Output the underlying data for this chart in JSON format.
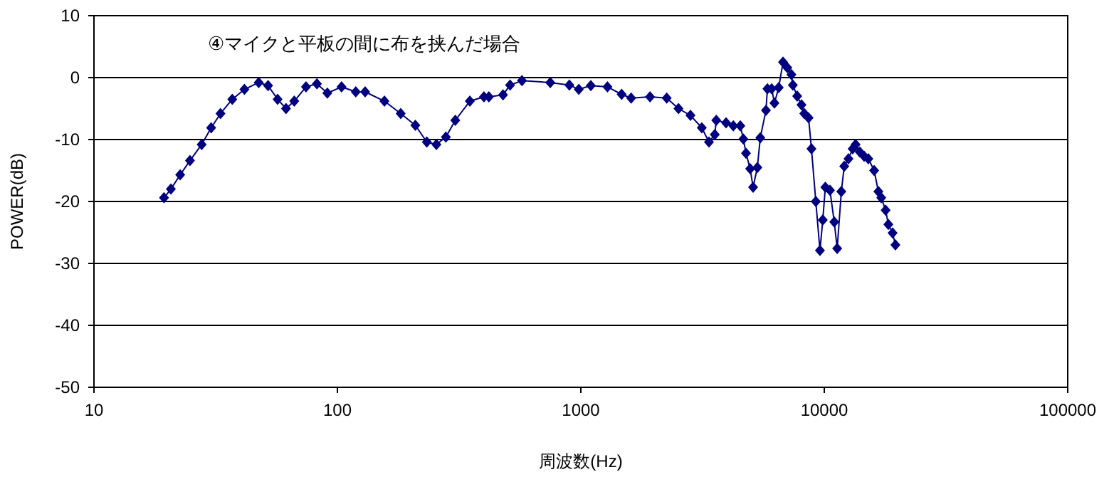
{
  "chart_data": {
    "type": "line",
    "title": "④マイクと平板の間に布を挟んだ場合",
    "xlabel": "周波数(Hz)",
    "ylabel": "POWER(dB)",
    "log": "x",
    "xlim": [
      10,
      100000
    ],
    "xticks": [
      10,
      100,
      1000,
      10000,
      100000
    ],
    "ylim": [
      -50,
      10
    ],
    "yticks": [
      -50,
      -40,
      -30,
      -20,
      -10,
      0,
      10
    ],
    "grid": "y",
    "marker": "diamond",
    "line_style": "solid",
    "series": [
      {
        "color": "#000080",
        "x": [
          19.4,
          20.7,
          22.6,
          24.8,
          27.7,
          30.3,
          33.1,
          37.0,
          41.5,
          47.5,
          51.9,
          56.8,
          61.5,
          66.5,
          74.3,
          82.4,
          90.9,
          104,
          119,
          130,
          156,
          182,
          209,
          233,
          255,
          279,
          305,
          350,
          400,
          419,
          479,
          512,
          573,
          749,
          897,
          981,
          1099,
          1286,
          1471,
          1609,
          1924,
          2253,
          2518,
          2820,
          3140,
          3360,
          3550,
          3600,
          3950,
          4230,
          4520,
          4650,
          4770,
          4960,
          5100,
          5310,
          5460,
          5760,
          5840,
          6080,
          6240,
          6500,
          6770,
          7050,
          7330,
          7430,
          7740,
          8060,
          8280,
          8620,
          8860,
          9230,
          9600,
          9860,
          10100,
          10550,
          10990,
          11300,
          11750,
          12080,
          12570,
          13080,
          13450,
          13990,
          14580,
          15170,
          16030,
          16680,
          17140,
          17860,
          18330,
          19080,
          19600
        ],
        "values": [
          -19.4,
          -18.0,
          -15.7,
          -13.4,
          -10.8,
          -8.1,
          -5.8,
          -3.5,
          -1.9,
          -0.8,
          -1.3,
          -3.5,
          -5.0,
          -3.8,
          -1.5,
          -1.0,
          -2.5,
          -1.5,
          -2.3,
          -2.3,
          -3.8,
          -5.8,
          -7.7,
          -10.4,
          -10.8,
          -9.6,
          -6.9,
          -3.8,
          -3.1,
          -3.1,
          -2.8,
          -1.2,
          -0.5,
          -0.8,
          -1.2,
          -1.9,
          -1.3,
          -1.5,
          -2.7,
          -3.3,
          -3.1,
          -3.3,
          -5.0,
          -6.1,
          -8.1,
          -10.4,
          -9.2,
          -6.9,
          -7.3,
          -7.8,
          -7.8,
          -9.9,
          -12.2,
          -14.7,
          -17.7,
          -14.5,
          -9.7,
          -5.3,
          -1.8,
          -1.8,
          -4.1,
          -1.6,
          2.5,
          1.6,
          0.5,
          -1.2,
          -3.0,
          -4.4,
          -5.8,
          -6.5,
          -11.5,
          -20,
          -27.9,
          -23,
          -17.7,
          -18.2,
          -23.3,
          -27.6,
          -18.4,
          -14.3,
          -13.1,
          -11.5,
          -10.8,
          -12.0,
          -12.7,
          -13.1,
          -15.0,
          -18.4,
          -19.4,
          -21.4,
          -23.7,
          -25.1,
          -27.0
        ]
      }
    ]
  }
}
